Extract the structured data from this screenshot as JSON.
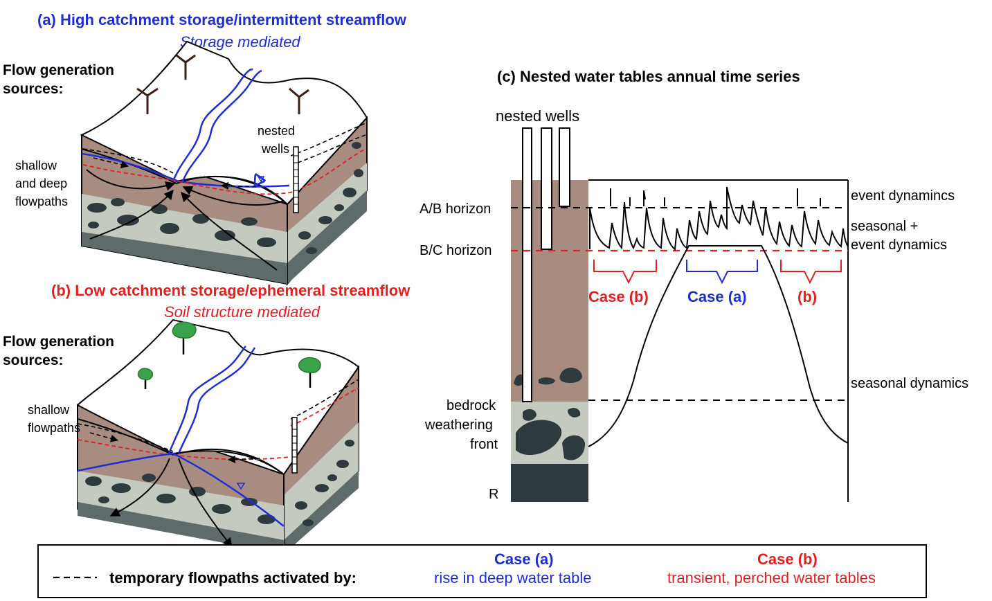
{
  "panel_a": {
    "title": "(a) High catchment storage/intermittent streamflow",
    "subtitle": "Storage mediated",
    "sources_line1": "Flow generation",
    "sources_line2": "sources:",
    "label_flowpaths_1": "shallow",
    "label_flowpaths_2": "and deep",
    "label_flowpaths_3": "flowpaths",
    "label_wells_1": "nested",
    "label_wells_2": "wells"
  },
  "panel_b": {
    "title": "(b) Low catchment storage/ephemeral streamflow",
    "subtitle": "Soil structure mediated",
    "sources_line1": "Flow generation",
    "sources_line2": "sources:",
    "label_flowpaths_1": "shallow",
    "label_flowpaths_2": "flowpaths"
  },
  "panel_c": {
    "title": "(c) Nested water tables annual time series",
    "wells_label": "nested wells",
    "ab_horizon": "A/B horizon",
    "bc_horizon": "B/C horizon",
    "bedrock_1": "bedrock",
    "bedrock_2": "weathering",
    "bedrock_3": "front",
    "r_label": "R",
    "event_dynamics": "event dynamincs",
    "seasonal_event_1": "seasonal +",
    "seasonal_event_2": "event dynamics",
    "seasonal_dynamics": "seasonal dynamics",
    "case_b_left": "Case (b)",
    "case_a": "Case (a)",
    "case_b_right": "(b)"
  },
  "legend": {
    "dash_text": "temporary flowpaths activated by:",
    "case_a_title": "Case (a)",
    "case_a_desc": "rise in deep water table",
    "case_b_title": "Case (b)",
    "case_b_desc": "transient, perched water tables"
  },
  "colors": {
    "blue": "#1e2ed6",
    "red": "#e4201f",
    "soil": "#a88c80",
    "weathered": "#c4cabf",
    "bedrock": "#5f6b6b",
    "rock_blob": "#2e3a3d",
    "tree_green": "#3aa24a"
  }
}
